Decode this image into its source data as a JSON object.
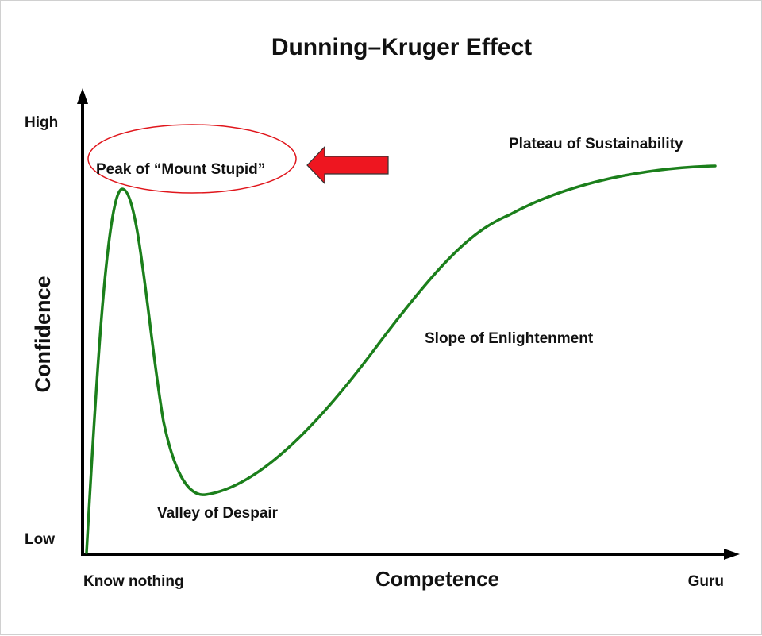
{
  "chart_data": {
    "type": "line",
    "title": "Dunning–Kruger Effect",
    "xlabel": "Competence",
    "ylabel": "Confidence",
    "x_tick_labels": [
      "Know nothing",
      "Guru"
    ],
    "y_tick_labels": [
      "High",
      "Low"
    ],
    "grid": false,
    "annotations": {
      "peak": "Peak of “Mount Stupid”",
      "valley": "Valley of Despair",
      "slope": "Slope of Enlightenment",
      "plateau": "Plateau of Sustainability"
    },
    "colors": {
      "curve": "#1b7f1b",
      "highlight_ellipse": "#e0161c",
      "arrow": "#ee1620",
      "axes": "#000000"
    }
  }
}
